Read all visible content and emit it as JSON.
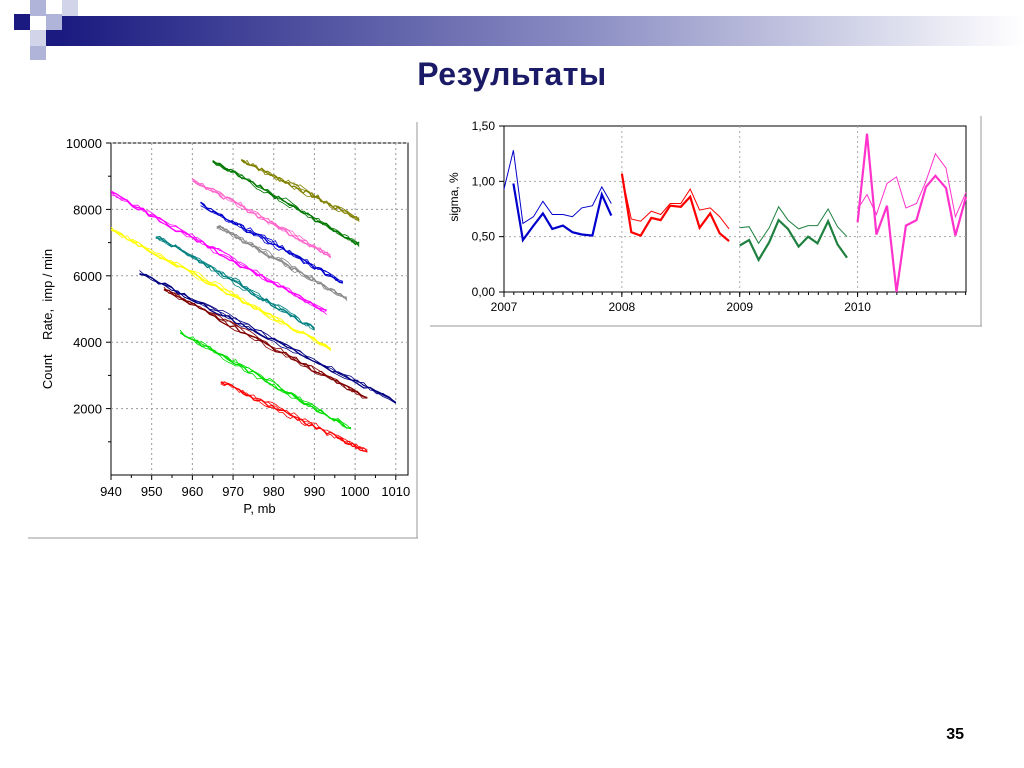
{
  "slide": {
    "title": "Результаты",
    "page_number": "35"
  },
  "colors": {
    "title": "#1a1a66",
    "deco_dark": "#1a1a80",
    "deco_light": "#b0b4d8"
  },
  "chart_data": [
    {
      "type": "line",
      "xlabel": "P, mb",
      "ylabel": "Count    Rate,  imp / min",
      "xlim": [
        940,
        1013
      ],
      "ylim": [
        0,
        10000
      ],
      "x_ticks": [
        "940",
        "950",
        "960",
        "970",
        "980",
        "990",
        "1000",
        "1010"
      ],
      "y_ticks": [
        "2000",
        "4000",
        "6000",
        "8000",
        "10000"
      ],
      "grid": true,
      "series": [
        {
          "color": "#808000",
          "x": [
            972,
            1001
          ],
          "y": [
            9500,
            7700
          ]
        },
        {
          "color": "#007700",
          "x": [
            965,
            1001
          ],
          "y": [
            9450,
            6950
          ]
        },
        {
          "color": "#ff66cc",
          "x": [
            960,
            994
          ],
          "y": [
            8900,
            6600
          ]
        },
        {
          "color": "#0000cc",
          "x": [
            962,
            997
          ],
          "y": [
            8150,
            5800
          ]
        },
        {
          "color": "#888888",
          "x": [
            966,
            998
          ],
          "y": [
            7500,
            5300
          ]
        },
        {
          "color": "#ff00ff",
          "x": [
            940,
            993
          ],
          "y": [
            8500,
            4900
          ]
        },
        {
          "color": "#008080",
          "x": [
            951,
            990
          ],
          "y": [
            7200,
            4400
          ]
        },
        {
          "color": "#000080",
          "x": [
            947,
            1010
          ],
          "y": [
            6100,
            2200
          ]
        },
        {
          "color": "#ffff00",
          "x": [
            940,
            994
          ],
          "y": [
            7400,
            3800
          ]
        },
        {
          "color": "#800000",
          "x": [
            953,
            1003
          ],
          "y": [
            5600,
            2300
          ]
        },
        {
          "color": "#00dd00",
          "x": [
            957,
            999
          ],
          "y": [
            4300,
            1400
          ]
        },
        {
          "color": "#ff0000",
          "x": [
            967,
            1003
          ],
          "y": [
            2800,
            700
          ]
        }
      ]
    },
    {
      "type": "line",
      "ylabel": "sigma, %",
      "xlim": [
        2007,
        2010.92
      ],
      "ylim": [
        0,
        1.5
      ],
      "x_ticks": [
        "2007",
        "2008",
        "2009",
        "2010"
      ],
      "y_ticks": [
        "0,00",
        "0,50",
        "1,00",
        "1,50"
      ],
      "grid": true,
      "series": [
        {
          "color": "#0000cc",
          "width": "thin",
          "x": [
            2007.0,
            2007.08,
            2007.16,
            2007.25,
            2007.33,
            2007.41,
            2007.5,
            2007.58,
            2007.66,
            2007.75,
            2007.83,
            2007.91
          ],
          "y": [
            0.93,
            1.28,
            0.62,
            0.68,
            0.82,
            0.7,
            0.7,
            0.68,
            0.76,
            0.78,
            0.95,
            0.8
          ]
        },
        {
          "color": "#0000cc",
          "width": "thick",
          "x": [
            2007.08,
            2007.16,
            2007.25,
            2007.33,
            2007.41,
            2007.5,
            2007.58,
            2007.66,
            2007.75,
            2007.83,
            2007.91
          ],
          "y": [
            0.98,
            0.47,
            0.6,
            0.71,
            0.57,
            0.6,
            0.54,
            0.52,
            0.51,
            0.88,
            0.69
          ]
        },
        {
          "color": "#ff0000",
          "width": "thin",
          "x": [
            2008.0,
            2008.08,
            2008.16,
            2008.25,
            2008.33,
            2008.41,
            2008.5,
            2008.58,
            2008.66,
            2008.75,
            2008.83,
            2008.91
          ],
          "y": [
            1.05,
            0.66,
            0.64,
            0.73,
            0.7,
            0.8,
            0.8,
            0.93,
            0.74,
            0.76,
            0.68,
            0.57
          ]
        },
        {
          "color": "#ff0000",
          "width": "thick",
          "x": [
            2008.0,
            2008.08,
            2008.16,
            2008.25,
            2008.33,
            2008.41,
            2008.5,
            2008.58,
            2008.66,
            2008.75,
            2008.83,
            2008.91
          ],
          "y": [
            1.07,
            0.54,
            0.51,
            0.67,
            0.65,
            0.78,
            0.77,
            0.86,
            0.58,
            0.71,
            0.53,
            0.46
          ]
        },
        {
          "color": "#208040",
          "width": "thin",
          "x": [
            2009.0,
            2009.08,
            2009.16,
            2009.25,
            2009.33,
            2009.41,
            2009.5,
            2009.58,
            2009.66,
            2009.75,
            2009.83,
            2009.91
          ],
          "y": [
            0.58,
            0.59,
            0.44,
            0.58,
            0.77,
            0.65,
            0.57,
            0.6,
            0.6,
            0.75,
            0.59,
            0.5
          ]
        },
        {
          "color": "#208040",
          "width": "thick",
          "x": [
            2009.0,
            2009.08,
            2009.16,
            2009.25,
            2009.33,
            2009.41,
            2009.5,
            2009.58,
            2009.66,
            2009.75,
            2009.83,
            2009.91
          ],
          "y": [
            0.42,
            0.47,
            0.29,
            0.45,
            0.65,
            0.57,
            0.41,
            0.5,
            0.44,
            0.64,
            0.43,
            0.31
          ]
        },
        {
          "color": "#ff33cc",
          "width": "thin",
          "x": [
            2010.0,
            2010.08,
            2010.16,
            2010.25,
            2010.33,
            2010.41,
            2010.5,
            2010.58,
            2010.66,
            2010.75,
            2010.83,
            2010.92
          ],
          "y": [
            0.75,
            0.88,
            0.7,
            0.98,
            1.04,
            0.76,
            0.8,
            1.0,
            1.25,
            1.12,
            0.68,
            0.9
          ]
        },
        {
          "color": "#ff33cc",
          "width": "thick",
          "x": [
            2010.0,
            2010.08,
            2010.16,
            2010.25,
            2010.33,
            2010.41,
            2010.5,
            2010.58,
            2010.66,
            2010.75,
            2010.83,
            2010.92
          ],
          "y": [
            0.63,
            1.43,
            0.52,
            0.78,
            0.0,
            0.6,
            0.65,
            0.95,
            1.05,
            0.94,
            0.51,
            0.86
          ]
        }
      ]
    }
  ]
}
